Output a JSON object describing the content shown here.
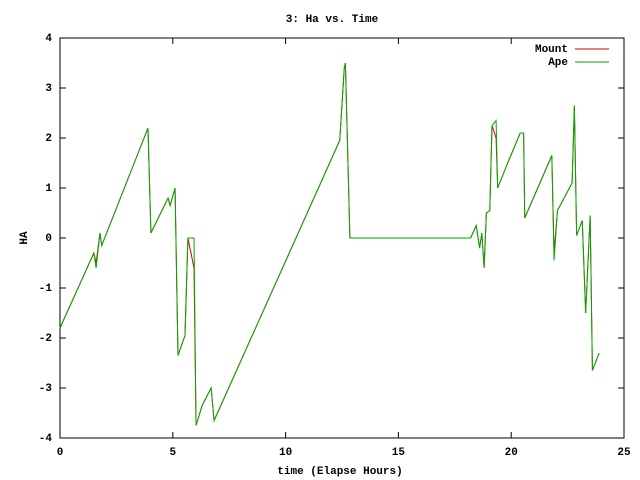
{
  "chart_data": {
    "type": "line",
    "title": "3: Ha vs. Time",
    "x_label": "time (Elapse Hours)",
    "y_label": "HA",
    "x": [
      0,
      1.5,
      1.6,
      1.77,
      1.85,
      3.9,
      4.03,
      4.79,
      4.88,
      5.1,
      5.23,
      5.54,
      5.67,
      5.94,
      6.03,
      6.3,
      6.7,
      6.83,
      12.4,
      12.6,
      12.65,
      12.85,
      18.2,
      18.45,
      18.6,
      18.7,
      18.8,
      18.9,
      19.05,
      19.15,
      19.33,
      19.4,
      19.8,
      20.4,
      20.55,
      20.6,
      21.8,
      21.9,
      22.05,
      22.7,
      22.8,
      22.9,
      23.15,
      23.3,
      23.5,
      23.6,
      23.9
    ],
    "series": [
      {
        "name": "Mount",
        "color": "#cc0000",
        "values": [
          -1.8,
          -0.3,
          -0.5,
          0.1,
          -0.15,
          2.2,
          0.1,
          0.8,
          0.65,
          1.0,
          -2.35,
          -1.95,
          0,
          -0.6,
          -3.75,
          -3.35,
          -3.0,
          -3.65,
          1.95,
          3.4,
          3.5,
          0,
          0,
          0.25,
          -0.2,
          0.1,
          -0.6,
          0.5,
          0.55,
          2.25,
          2.0,
          1.0,
          1.45,
          2.1,
          2.1,
          0.4,
          1.65,
          -0.3,
          0.55,
          1.1,
          2.65,
          0.05,
          0.35,
          -1.5,
          0.45,
          -2.65,
          -2.3
        ]
      },
      {
        "name": "Ape",
        "color": "#00aa00",
        "values": [
          -1.8,
          -0.3,
          -0.6,
          0.1,
          -0.15,
          2.2,
          0.1,
          0.8,
          0.65,
          1.0,
          -2.35,
          -1.95,
          0,
          0,
          -3.75,
          -3.35,
          -3.0,
          -3.65,
          1.95,
          3.4,
          3.5,
          0,
          0,
          0.25,
          -0.2,
          0.1,
          -0.6,
          0.5,
          0.55,
          2.25,
          2.35,
          1.0,
          1.45,
          2.1,
          2.1,
          0.4,
          1.65,
          -0.45,
          0.55,
          1.1,
          2.65,
          0.05,
          0.35,
          -1.5,
          0.45,
          -2.65,
          -2.3
        ]
      }
    ],
    "xlim": [
      0,
      25
    ],
    "xticks": [
      0,
      5,
      10,
      15,
      20,
      25
    ],
    "ylim": [
      -4,
      4
    ],
    "yticks": [
      -4,
      -3,
      -2,
      -1,
      0,
      1,
      2,
      3,
      4
    ],
    "grid": false,
    "legend": "top-right"
  }
}
